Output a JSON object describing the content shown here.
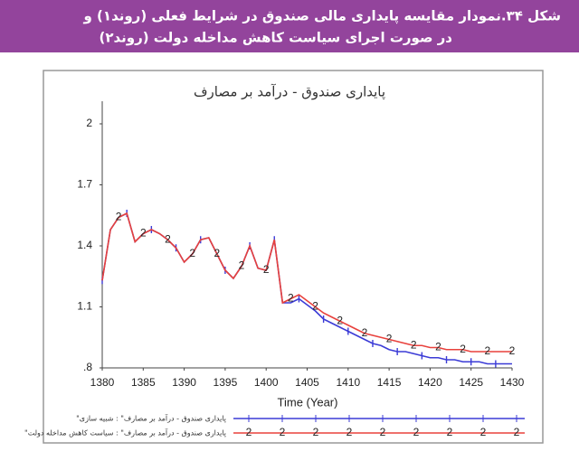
{
  "header": {
    "title_line1": "شکل ۳۴.نمودار مقایسه پایداری مالی صندوق در شرایط فعلی (روند۱) و",
    "title_line2": "در صورت اجرای سیاست کاهش مداخله دولت (روند۲)"
  },
  "chart_data": {
    "type": "line",
    "title": "پایداری صندوق - درآمد بر مصارف",
    "xlabel": "Time (Year)",
    "x": [
      1380,
      1381,
      1382,
      1383,
      1384,
      1385,
      1386,
      1387,
      1388,
      1389,
      1390,
      1391,
      1392,
      1393,
      1394,
      1395,
      1396,
      1397,
      1398,
      1399,
      1400,
      1401,
      1402,
      1403,
      1404,
      1405,
      1406,
      1407,
      1408,
      1409,
      1410,
      1411,
      1412,
      1413,
      1414,
      1415,
      1416,
      1417,
      1418,
      1419,
      1420,
      1421,
      1422,
      1423,
      1424,
      1425,
      1426,
      1427,
      1428,
      1429,
      1430
    ],
    "series": [
      {
        "name": "پایداری صندوق - درآمد بر مصارف\" : شبیه سازی\"",
        "color": "#3b3bd6",
        "marker": "1",
        "values": [
          1.23,
          1.48,
          1.54,
          1.56,
          1.42,
          1.46,
          1.48,
          1.46,
          1.43,
          1.39,
          1.32,
          1.36,
          1.43,
          1.44,
          1.36,
          1.28,
          1.24,
          1.3,
          1.4,
          1.29,
          1.28,
          1.43,
          1.12,
          1.12,
          1.14,
          1.11,
          1.08,
          1.04,
          1.02,
          1.0,
          0.98,
          0.96,
          0.94,
          0.92,
          0.91,
          0.89,
          0.88,
          0.88,
          0.87,
          0.86,
          0.85,
          0.85,
          0.84,
          0.84,
          0.83,
          0.83,
          0.83,
          0.82,
          0.82,
          0.82,
          0.82
        ]
      },
      {
        "name": "پایداری صندوق - درآمد بر مصارف\" : سیاست کاهش مداخله دولت\"",
        "color": "#e8413c",
        "marker": "2",
        "values": [
          1.23,
          1.48,
          1.54,
          1.56,
          1.42,
          1.46,
          1.48,
          1.46,
          1.43,
          1.39,
          1.32,
          1.36,
          1.43,
          1.44,
          1.36,
          1.28,
          1.24,
          1.3,
          1.4,
          1.29,
          1.28,
          1.43,
          1.12,
          1.14,
          1.16,
          1.13,
          1.1,
          1.07,
          1.05,
          1.03,
          1.01,
          0.99,
          0.97,
          0.96,
          0.95,
          0.94,
          0.93,
          0.92,
          0.91,
          0.91,
          0.9,
          0.9,
          0.89,
          0.89,
          0.89,
          0.88,
          0.88,
          0.88,
          0.88,
          0.88,
          0.88
        ]
      }
    ],
    "xlim": [
      1380,
      1430
    ],
    "xticks": [
      1380,
      1385,
      1390,
      1395,
      1400,
      1405,
      1410,
      1415,
      1420,
      1425,
      1430
    ],
    "ylim": [
      0.8,
      2
    ],
    "yticks": [
      {
        "value": 0.8,
        "label": ".8"
      },
      1.1,
      1.4,
      1.7,
      2
    ],
    "grid": false
  }
}
